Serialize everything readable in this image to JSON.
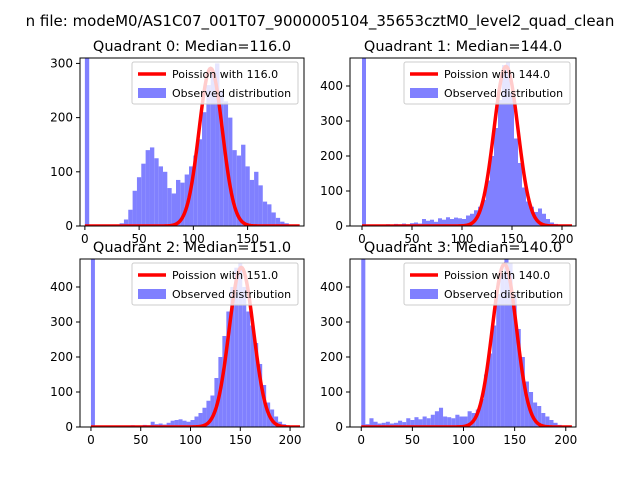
{
  "suptitle": "n file: modeM0/AS1C07_001T07_9000005104_35653cztM0_level2_quad_clean",
  "colors": {
    "hist": "#8080ff",
    "poisson": "#ff0000"
  },
  "chart_data": [
    {
      "type": "bar+line",
      "title": "Quadrant 0: Median=116.0",
      "xlim": [
        -4.5,
        202
      ],
      "ylim": [
        0,
        310
      ],
      "xticks": [
        0,
        50,
        100,
        150
      ],
      "yticks": [
        0,
        100,
        200,
        300
      ],
      "bin_width": 4,
      "bins_x": [
        0,
        32,
        36,
        40,
        44,
        48,
        52,
        56,
        60,
        64,
        68,
        72,
        76,
        80,
        84,
        88,
        92,
        96,
        100,
        104,
        108,
        112,
        116,
        120,
        124,
        128,
        132,
        136,
        140,
        144,
        148,
        152,
        156,
        160,
        164,
        168,
        172,
        176,
        180,
        184
      ],
      "counts": [
        310,
        5,
        12,
        30,
        65,
        90,
        115,
        140,
        145,
        125,
        110,
        100,
        70,
        60,
        85,
        80,
        95,
        110,
        130,
        160,
        210,
        260,
        285,
        300,
        250,
        230,
        200,
        140,
        130,
        150,
        110,
        85,
        100,
        75,
        45,
        40,
        25,
        15,
        8,
        5
      ],
      "poisson_label": "Poission with 116.0",
      "poisson_mu": 116.0,
      "hist_label": "Observed distribution",
      "legend": "top-right"
    },
    {
      "type": "bar+line",
      "title": "Quadrant 1: Median=144.0",
      "xlim": [
        -12,
        214
      ],
      "ylim": [
        0,
        480
      ],
      "xticks": [
        0,
        50,
        100,
        150,
        200
      ],
      "yticks": [
        0,
        100,
        200,
        300,
        400
      ],
      "bin_width": 4,
      "bins_x": [
        0,
        20,
        24,
        28,
        32,
        36,
        40,
        44,
        48,
        52,
        56,
        60,
        64,
        68,
        72,
        76,
        80,
        84,
        88,
        92,
        96,
        100,
        104,
        108,
        112,
        116,
        120,
        124,
        128,
        132,
        136,
        140,
        144,
        148,
        152,
        156,
        160,
        164,
        168,
        172,
        176,
        180,
        184,
        188,
        192,
        196,
        200
      ],
      "counts": [
        480,
        3,
        5,
        4,
        6,
        5,
        7,
        5,
        8,
        10,
        7,
        20,
        15,
        18,
        12,
        22,
        18,
        25,
        20,
        24,
        22,
        20,
        30,
        35,
        45,
        55,
        75,
        130,
        200,
        280,
        360,
        460,
        470,
        380,
        250,
        180,
        110,
        70,
        55,
        40,
        50,
        35,
        20,
        10,
        6,
        3,
        2
      ],
      "poisson_label": "Poission with 144.0",
      "poisson_mu": 144.0,
      "hist_label": "Observed distribution",
      "legend": "top-right"
    },
    {
      "type": "bar+line",
      "title": "Quadrant 2: Median=151.0",
      "xlim": [
        -11,
        214
      ],
      "ylim": [
        0,
        480
      ],
      "xticks": [
        0,
        50,
        100,
        150,
        200
      ],
      "yticks": [
        0,
        100,
        200,
        300,
        400
      ],
      "bin_width": 4,
      "bins_x": [
        0,
        20,
        24,
        28,
        32,
        36,
        40,
        44,
        48,
        52,
        56,
        60,
        64,
        68,
        72,
        76,
        80,
        84,
        88,
        92,
        96,
        100,
        104,
        108,
        112,
        116,
        120,
        124,
        128,
        132,
        136,
        140,
        144,
        148,
        152,
        156,
        160,
        164,
        168,
        172,
        176,
        180,
        184,
        188,
        192,
        196
      ],
      "counts": [
        480,
        2,
        3,
        2,
        4,
        3,
        5,
        3,
        4,
        6,
        5,
        15,
        8,
        10,
        7,
        12,
        18,
        20,
        22,
        18,
        15,
        20,
        30,
        40,
        55,
        75,
        90,
        140,
        200,
        260,
        330,
        400,
        455,
        470,
        400,
        330,
        290,
        240,
        180,
        120,
        70,
        50,
        30,
        15,
        8,
        4
      ],
      "poisson_label": "Poission with 151.0",
      "poisson_mu": 151.0,
      "hist_label": "Observed distribution",
      "legend": "top-right"
    },
    {
      "type": "bar+line",
      "title": "Quadrant 3: Median=140.0",
      "xlim": [
        -11,
        210
      ],
      "ylim": [
        0,
        480
      ],
      "xticks": [
        0,
        50,
        100,
        150,
        200
      ],
      "yticks": [
        0,
        100,
        200,
        300,
        400
      ],
      "bin_width": 4,
      "bins_x": [
        0,
        4,
        8,
        12,
        16,
        20,
        24,
        28,
        32,
        36,
        40,
        44,
        48,
        52,
        56,
        60,
        64,
        68,
        72,
        76,
        80,
        84,
        88,
        92,
        96,
        100,
        104,
        108,
        112,
        116,
        120,
        124,
        128,
        132,
        136,
        140,
        144,
        148,
        152,
        156,
        160,
        164,
        168,
        172,
        176,
        180,
        184,
        188,
        192,
        196
      ],
      "counts": [
        480,
        8,
        25,
        15,
        10,
        12,
        15,
        10,
        12,
        18,
        14,
        25,
        20,
        28,
        22,
        30,
        25,
        35,
        45,
        55,
        30,
        28,
        25,
        35,
        30,
        30,
        45,
        40,
        50,
        80,
        150,
        210,
        290,
        380,
        440,
        480,
        470,
        380,
        280,
        200,
        130,
        100,
        70,
        60,
        40,
        30,
        20,
        12,
        6,
        3
      ],
      "poisson_label": "Poission with 140.0",
      "poisson_mu": 140.0,
      "hist_label": "Observed distribution",
      "legend": "top-right"
    }
  ]
}
